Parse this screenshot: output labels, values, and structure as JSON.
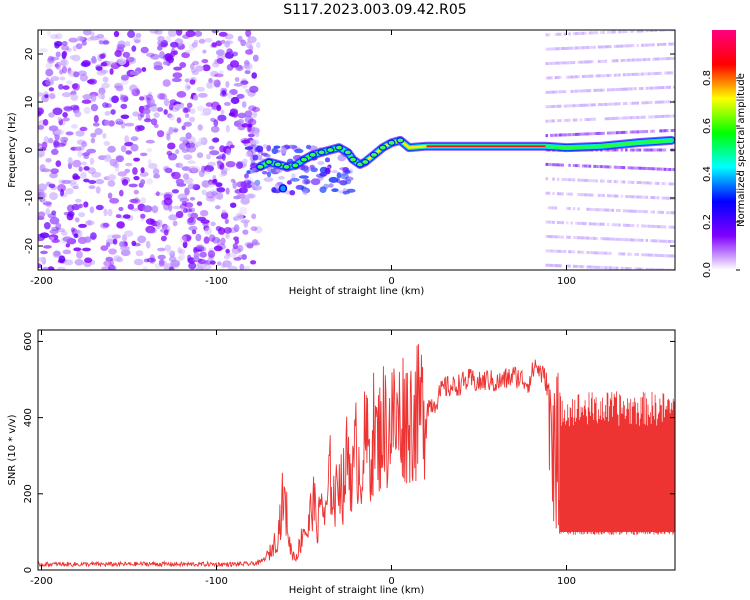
{
  "page_title": "S117.2023.003.09.42.R05",
  "chart_data": [
    {
      "type": "heatmap",
      "name": "spectrogram",
      "xlabel": "Height of straight line (km)",
      "ylabel": "Frequency (Hz)",
      "xlim": [
        -202,
        162
      ],
      "ylim": [
        -25,
        25
      ],
      "xticks": [
        -200,
        -100,
        0,
        100
      ],
      "yticks": [
        -20,
        -10,
        0,
        10,
        20
      ],
      "colorbar": {
        "label": "Normalized spectral amplitude",
        "range": [
          0,
          1
        ],
        "ticks": [
          "0.0",
          "0.2",
          "0.4",
          "0.6",
          "0.8"
        ],
        "colormap": [
          "#ffffff",
          "#7f00ff",
          "#0000ff",
          "#00ffff",
          "#00ff00",
          "#ffff00",
          "#ff0000",
          "#ff0080"
        ]
      },
      "regions": [
        {
          "x": [
            -202,
            -80
          ],
          "y": [
            -25,
            25
          ],
          "pattern": "broadband noise",
          "amplitude": 0.2
        },
        {
          "x": [
            -80,
            88
          ],
          "pattern": "narrow tone",
          "amplitude": 1.0
        },
        {
          "x": [
            88,
            162
          ],
          "pattern": "harmonic comb",
          "amplitude": 0.1,
          "spacing_hz": 3
        }
      ],
      "ridge": [
        {
          "x": -75,
          "y": -3.5
        },
        {
          "x": -70,
          "y": -2.5
        },
        {
          "x": -65,
          "y": -3.0
        },
        {
          "x": -60,
          "y": -3.5
        },
        {
          "x": -55,
          "y": -3.2
        },
        {
          "x": -50,
          "y": -2.0
        },
        {
          "x": -45,
          "y": -1.0
        },
        {
          "x": -40,
          "y": -0.5
        },
        {
          "x": -35,
          "y": 0.0
        },
        {
          "x": -30,
          "y": 0.5
        },
        {
          "x": -25,
          "y": -0.5
        },
        {
          "x": -22,
          "y": -2.0
        },
        {
          "x": -18,
          "y": -3.0
        },
        {
          "x": -15,
          "y": -2.5
        },
        {
          "x": -10,
          "y": -1.0
        },
        {
          "x": -5,
          "y": 0.5
        },
        {
          "x": 0,
          "y": 1.5
        },
        {
          "x": 5,
          "y": 2.0
        },
        {
          "x": 10,
          "y": 0.5
        },
        {
          "x": 20,
          "y": 0.8
        },
        {
          "x": 40,
          "y": 0.8
        },
        {
          "x": 60,
          "y": 0.8
        },
        {
          "x": 80,
          "y": 0.8
        },
        {
          "x": 88,
          "y": 0.8
        },
        {
          "x": 100,
          "y": 0.5
        },
        {
          "x": 120,
          "y": 0.8
        },
        {
          "x": 140,
          "y": 1.5
        },
        {
          "x": 160,
          "y": 2.0
        }
      ],
      "outliers": [
        {
          "x": -62,
          "y": -8,
          "amplitude": 0.3
        }
      ]
    },
    {
      "type": "line",
      "name": "snr",
      "xlabel": "Height of straight line (km)",
      "ylabel": "SNR (10 * v/v)",
      "xlim": [
        -202,
        162
      ],
      "ylim": [
        0,
        630
      ],
      "xticks": [
        -200,
        -100,
        0,
        100
      ],
      "yticks": [
        0,
        200,
        400,
        600
      ],
      "color": "#ee3333",
      "series": [
        {
          "x": [
            -200,
            -180,
            -160,
            -140,
            -120,
            -100,
            -90,
            -80,
            -75,
            -70,
            -65,
            -62,
            -60,
            -58,
            -55,
            -52,
            -50,
            -48,
            -45,
            -42,
            -40,
            -38,
            -35,
            -32,
            -30,
            -28,
            -25,
            -22,
            -20,
            -18,
            -15,
            -12,
            -10,
            -8,
            -5,
            -2,
            0,
            3,
            6,
            10,
            15,
            20,
            25,
            30,
            35,
            40,
            45,
            50,
            55,
            60,
            65,
            70,
            75,
            78,
            80,
            82,
            85,
            88,
            90
          ],
          "y": [
            15,
            15,
            15,
            16,
            15,
            15,
            15,
            16,
            20,
            40,
            90,
            190,
            150,
            60,
            30,
            70,
            120,
            90,
            190,
            110,
            200,
            120,
            250,
            170,
            280,
            200,
            310,
            240,
            330,
            250,
            340,
            300,
            370,
            330,
            390,
            360,
            400,
            380,
            410,
            400,
            410,
            430,
            440,
            480,
            480,
            490,
            500,
            490,
            500,
            490,
            500,
            510,
            500,
            490,
            510,
            540,
            520,
            500,
            470
          ],
          "band": {
            "x": [
              96,
              162
            ],
            "low": 100,
            "high": 460
          }
        }
      ]
    }
  ]
}
